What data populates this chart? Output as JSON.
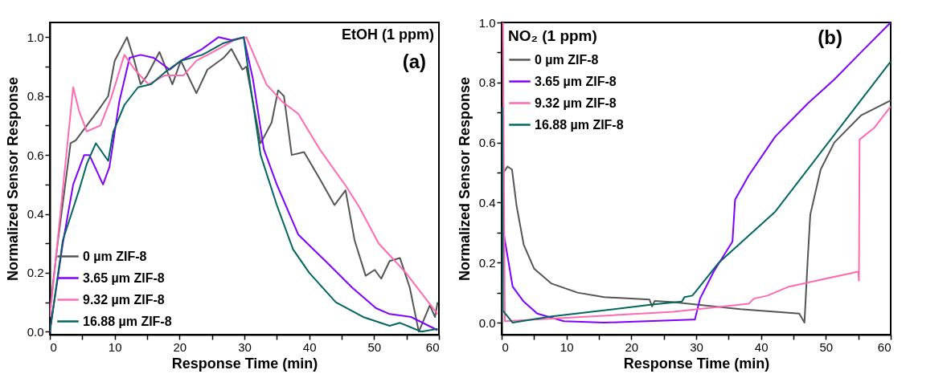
{
  "chart_data": [
    {
      "type": "line",
      "xlabel": "Response Time (min)",
      "ylabel": "Normalized Sensor Response",
      "annotations": [
        "EtOH (1 ppm)",
        "(a)"
      ],
      "legend": "bottom left",
      "xlim": [
        0,
        60
      ],
      "ylim": [
        -0.01,
        1.05
      ],
      "xticks": [
        0,
        {
          "value": 5,
          "label": null
        },
        10,
        {
          "value": 15,
          "label": null
        },
        20,
        {
          "value": 25,
          "label": null
        },
        30,
        {
          "value": 35,
          "label": null
        },
        40,
        {
          "value": 45,
          "label": null
        },
        50,
        {
          "value": 55,
          "label": null
        },
        60
      ],
      "yticks": [
        {
          "value": 0,
          "label": "0.0"
        },
        {
          "value": 0.1,
          "label": null
        },
        {
          "value": 0.2,
          "label": "0.2"
        },
        {
          "value": 0.3,
          "label": null
        },
        {
          "value": 0.4,
          "label": "0.4"
        },
        {
          "value": 0.5,
          "label": null
        },
        {
          "value": 0.6,
          "label": "0.6"
        },
        {
          "value": 0.7,
          "label": null
        },
        {
          "value": 0.8,
          "label": "0.8"
        },
        {
          "value": 0.9,
          "label": null
        },
        {
          "value": 1,
          "label": "1.0"
        }
      ],
      "series": [
        {
          "name": "0 µm ZIF-8",
          "color": "#555555",
          "x": [
            0,
            1.2,
            3.2,
            4.0,
            5.7,
            7.4,
            9.0,
            10,
            11.9,
            12.9,
            14,
            15,
            16.9,
            18.9,
            20.2,
            22.6,
            24.3,
            26.8,
            28,
            29.7,
            30.3,
            32.5,
            34.2,
            35.2,
            36.1,
            37.3,
            39.2,
            41.6,
            43.9,
            45.6,
            47,
            48.7,
            50.1,
            51.1,
            52.4,
            54,
            55.5,
            56.9,
            58.6,
            59.4,
            59.8
          ],
          "values": [
            0.07,
            0.3,
            0.64,
            0.65,
            0.7,
            0.75,
            0.8,
            0.92,
            1.0,
            0.93,
            0.84,
            0.87,
            0.95,
            0.84,
            0.92,
            0.81,
            0.89,
            0.93,
            0.96,
            0.89,
            0.9,
            0.64,
            0.71,
            0.82,
            0.8,
            0.6,
            0.61,
            0.52,
            0.43,
            0.48,
            0.31,
            0.19,
            0.21,
            0.18,
            0.24,
            0.25,
            0.15,
            0.0,
            0.09,
            0.05,
            0.1
          ]
        },
        {
          "name": "3.65 µm ZIF-8",
          "color": "#7f00ff",
          "x": [
            0,
            2,
            3.6,
            5.3,
            6.1,
            8.2,
            9.2,
            10.7,
            12.3,
            14,
            16,
            18.5,
            20.2,
            23.5,
            26,
            28,
            29.9,
            31.3,
            33,
            35,
            38.3,
            42.5,
            46.6,
            50.3,
            52.4,
            55.7,
            59.8
          ],
          "values": [
            0,
            0.3,
            0.5,
            0.6,
            0.6,
            0.5,
            0.56,
            0.78,
            0.93,
            0.94,
            0.93,
            0.89,
            0.92,
            0.96,
            1.0,
            0.99,
            1.0,
            0.86,
            0.62,
            0.5,
            0.33,
            0.24,
            0.15,
            0.08,
            0.06,
            0.05,
            0.005
          ]
        },
        {
          "name": "9.32 µm ZIF-8",
          "color": "#ff69b4",
          "x": [
            0,
            0.7,
            2.4,
            3.6,
            4.5,
            5.7,
            7.8,
            9.4,
            11.5,
            13.1,
            15.2,
            17.7,
            20.6,
            22.6,
            26,
            28.4,
            30.3,
            33.4,
            35.9,
            38.3,
            41.6,
            45.8,
            47.8,
            50.7,
            54.9,
            59.8
          ],
          "values": [
            0.05,
            0.2,
            0.57,
            0.83,
            0.75,
            0.68,
            0.7,
            0.79,
            0.94,
            0.89,
            0.84,
            0.87,
            0.87,
            0.92,
            0.96,
            0.99,
            1.0,
            0.84,
            0.78,
            0.74,
            0.62,
            0.49,
            0.42,
            0.3,
            0.2,
            0.06
          ]
        },
        {
          "name": "16.88 µm ZIF-8",
          "color": "#00665e",
          "x": [
            0,
            2,
            4.5,
            5.7,
            7.1,
            9,
            9.8,
            11.5,
            13.6,
            15.6,
            17.7,
            20.2,
            23.5,
            26.8,
            29.9,
            30.9,
            32.5,
            35,
            37.5,
            40,
            44.1,
            48.3,
            52.4,
            54,
            57.3,
            59.8
          ],
          "values": [
            0,
            0.31,
            0.48,
            0.57,
            0.64,
            0.58,
            0.68,
            0.77,
            0.83,
            0.84,
            0.88,
            0.92,
            0.94,
            0.98,
            1.0,
            0.84,
            0.6,
            0.43,
            0.28,
            0.2,
            0.1,
            0.05,
            0.02,
            0.03,
            0,
            0.01
          ]
        }
      ]
    },
    {
      "type": "line",
      "xlabel": "Response Time (min)",
      "ylabel": "Normalized Sensor Response",
      "legend_title": "NO₂ (1 ppm)",
      "annotations": [
        "(b)"
      ],
      "legend": "top left",
      "xlim": [
        0,
        60
      ],
      "ylim": [
        -0.04,
        1
      ],
      "xticks": [
        0,
        {
          "value": 5,
          "label": null
        },
        10,
        {
          "value": 15,
          "label": null
        },
        20,
        {
          "value": 25,
          "label": null
        },
        30,
        {
          "value": 35,
          "label": null
        },
        40,
        {
          "value": 45,
          "label": null
        },
        50,
        {
          "value": 55,
          "label": null
        },
        60
      ],
      "yticks": [
        {
          "value": 0,
          "label": "0.0"
        },
        {
          "value": 0.1,
          "label": null
        },
        {
          "value": 0.2,
          "label": "0.2"
        },
        {
          "value": 0.3,
          "label": null
        },
        {
          "value": 0.4,
          "label": "0.4"
        },
        {
          "value": 0.5,
          "label": null
        },
        {
          "value": 0.6,
          "label": "0.6"
        },
        {
          "value": 0.7,
          "label": null
        },
        {
          "value": 0.8,
          "label": "0.8"
        },
        {
          "value": 0.9,
          "label": null
        },
        {
          "value": 1,
          "label": "1.0"
        }
      ],
      "series": [
        {
          "name": "0 µm ZIF-8",
          "color": "#555555",
          "x": [
            0.1,
            0.3,
            0.9,
            1.6,
            2.3,
            3.4,
            5,
            7.7,
            11.7,
            15.8,
            22.8,
            23.2,
            23.6,
            26.5,
            36.8,
            45.9,
            46.7,
            47.2,
            47.6,
            49.2,
            51.3,
            55.4,
            60
          ],
          "values": [
            0.0,
            0.5,
            0.52,
            0.51,
            0.39,
            0.26,
            0.18,
            0.13,
            0.1,
            0.085,
            0.077,
            0.054,
            0.072,
            0.068,
            0.045,
            0.03,
            0.0,
            0.21,
            0.36,
            0.51,
            0.6,
            0.69,
            0.74
          ]
        },
        {
          "name": "3.65 µm ZIF-8",
          "color": "#7f00ff",
          "x": [
            0.3,
            1.7,
            3.4,
            5.5,
            9.6,
            15.8,
            29.4,
            29.8,
            30.6,
            32.7,
            35.6,
            36,
            38.1,
            42.2,
            47.2,
            51.3,
            55.4,
            60
          ],
          "values": [
            0.3,
            0.12,
            0.07,
            0.03,
            0.005,
            0,
            0.01,
            0.01,
            0.08,
            0.17,
            0.27,
            0.41,
            0.49,
            0.62,
            0.73,
            0.81,
            0.9,
            1.0
          ]
        },
        {
          "name": "9.32 µm ZIF-8",
          "color": "#ff69b4",
          "x": [
            0.2,
            0.5,
            26.5,
            38.1,
            38.9,
            41,
            44.3,
            55,
            55.1,
            55.2,
            57.5,
            60
          ],
          "values": [
            1.0,
            0.005,
            0.036,
            0.063,
            0.08,
            0.09,
            0.12,
            0.17,
            0.14,
            0.61,
            0.65,
            0.72
          ]
        },
        {
          "name": "16.88 µm ZIF-8",
          "color": "#00665e",
          "x": [
            0.1,
            0.2,
            1.7,
            7.5,
            23.2,
            27.8,
            28.2,
            29.4,
            29.8,
            33.5,
            42.2,
            60
          ],
          "values": [
            0.72,
            0.04,
            0,
            0.02,
            0.06,
            0.07,
            0.085,
            0.09,
            0.1,
            0.2,
            0.37,
            0.87
          ]
        }
      ]
    }
  ]
}
